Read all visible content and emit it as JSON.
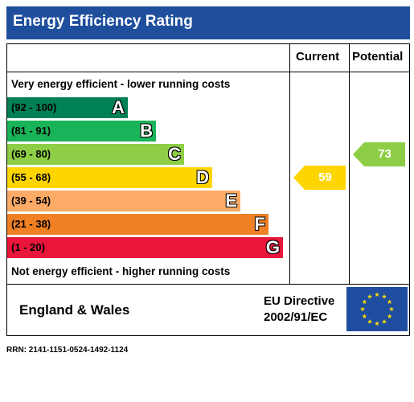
{
  "title": "Energy Efficiency Rating",
  "columns": {
    "current": "Current",
    "potential": "Potential"
  },
  "top_note": "Very energy efficient - lower running costs",
  "bottom_note": "Not energy efficient - higher running costs",
  "footer": {
    "region": "England & Wales",
    "directive_line1": "EU Directive",
    "directive_line2": "2002/91/EC",
    "flag_icon": "eu-flag-icon"
  },
  "rrn": "RRN: 2141-1151-0524-1492-1124",
  "chart_data": {
    "type": "bar",
    "categories": [
      "A",
      "B",
      "C",
      "D",
      "E",
      "F",
      "G"
    ],
    "bands": [
      {
        "letter": "A",
        "range": "(92 - 100)",
        "min": 92,
        "max": 100,
        "color": "#008054"
      },
      {
        "letter": "B",
        "range": "(81 - 91)",
        "min": 81,
        "max": 91,
        "color": "#19b459"
      },
      {
        "letter": "C",
        "range": "(69 - 80)",
        "min": 69,
        "max": 80,
        "color": "#8dce46"
      },
      {
        "letter": "D",
        "range": "(55 - 68)",
        "min": 55,
        "max": 68,
        "color": "#ffd500"
      },
      {
        "letter": "E",
        "range": "(39 - 54)",
        "min": 39,
        "max": 54,
        "color": "#fcaa65"
      },
      {
        "letter": "F",
        "range": "(21 - 38)",
        "min": 21,
        "max": 38,
        "color": "#ef8023"
      },
      {
        "letter": "G",
        "range": "(1 - 20)",
        "min": 1,
        "max": 20,
        "color": "#e9153b"
      }
    ],
    "current": {
      "value": 59,
      "band": "D",
      "color": "#ffd500"
    },
    "potential": {
      "value": 73,
      "band": "C",
      "color": "#8dce46"
    }
  }
}
